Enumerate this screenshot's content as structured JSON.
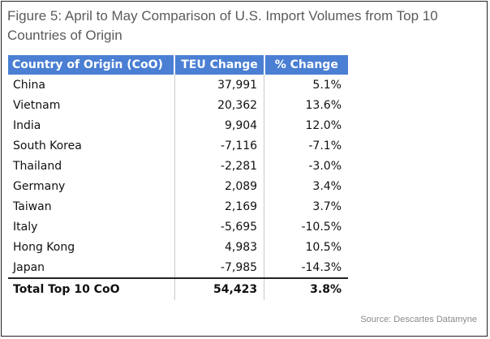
{
  "title": "Figure 5: April to May Comparison of U.S. Import Volumes from Top 10 Countries of Origin",
  "source": "Source: Descartes Datamyne",
  "colors": {
    "header_bg": "#4a7fd3",
    "header_text": "#ffffff"
  },
  "chart_data": {
    "type": "table",
    "columns": [
      "Country of Origin (CoO)",
      "TEU Change",
      "% Change"
    ],
    "rows": [
      [
        "China",
        "37,991",
        "5.1%"
      ],
      [
        "Vietnam",
        "20,362",
        "13.6%"
      ],
      [
        "India",
        "9,904",
        "12.0%"
      ],
      [
        "South Korea",
        "-7,116",
        "-7.1%"
      ],
      [
        "Thailand",
        "-2,281",
        "-3.0%"
      ],
      [
        "Germany",
        "2,089",
        "3.4%"
      ],
      [
        "Taiwan",
        "2,169",
        "3.7%"
      ],
      [
        "Italy",
        "-5,695",
        "-10.5%"
      ],
      [
        "Hong Kong",
        "4,983",
        "10.5%"
      ],
      [
        "Japan",
        "-7,985",
        "-14.3%"
      ]
    ],
    "total": [
      "Total Top 10 CoO",
      "54,423",
      "3.8%"
    ]
  }
}
